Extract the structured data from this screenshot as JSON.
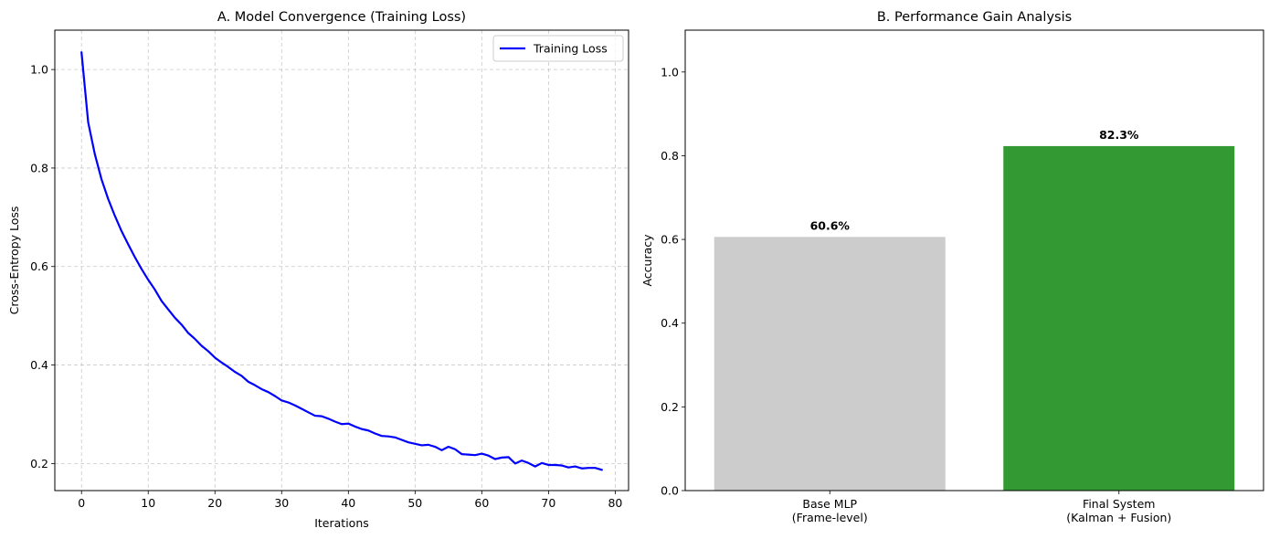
{
  "chart_data": [
    {
      "type": "line",
      "title": "A. Model Convergence (Training Loss)",
      "xlabel": "Iterations",
      "ylabel": "Cross-Entropy Loss",
      "xlim": [
        -4,
        82
      ],
      "ylim": [
        0.145,
        1.08
      ],
      "xticks": [
        0,
        10,
        20,
        30,
        40,
        50,
        60,
        70,
        80
      ],
      "xtick_labels": [
        "0",
        "10",
        "20",
        "30",
        "40",
        "50",
        "60",
        "70",
        "80"
      ],
      "yticks": [
        0.2,
        0.4,
        0.6,
        0.8,
        1.0
      ],
      "ytick_labels": [
        "0.2",
        "0.4",
        "0.6",
        "0.8",
        "1.0"
      ],
      "grid": true,
      "legend_position": "top-right",
      "series": [
        {
          "name": "Training Loss",
          "color": "#0000ff",
          "x": [
            0,
            1,
            2,
            3,
            4,
            5,
            6,
            7,
            8,
            9,
            10,
            11,
            12,
            13,
            14,
            15,
            16,
            17,
            18,
            19,
            20,
            21,
            22,
            23,
            24,
            25,
            26,
            27,
            28,
            29,
            30,
            31,
            32,
            33,
            34,
            35,
            36,
            37,
            38,
            39,
            40,
            41,
            42,
            43,
            44,
            45,
            46,
            47,
            48,
            49,
            50,
            51,
            52,
            53,
            54,
            55,
            56,
            57,
            58,
            59,
            60,
            61,
            62,
            63,
            64,
            65,
            66,
            67,
            68,
            69,
            70,
            71,
            72,
            73,
            74,
            75,
            76,
            77,
            78
          ],
          "values": [
            1.035,
            0.893,
            0.828,
            0.777,
            0.737,
            0.703,
            0.672,
            0.645,
            0.619,
            0.595,
            0.573,
            0.553,
            0.53,
            0.513,
            0.496,
            0.482,
            0.465,
            0.453,
            0.439,
            0.428,
            0.415,
            0.405,
            0.396,
            0.386,
            0.378,
            0.366,
            0.359,
            0.351,
            0.345,
            0.337,
            0.328,
            0.324,
            0.318,
            0.311,
            0.304,
            0.297,
            0.296,
            0.291,
            0.285,
            0.28,
            0.281,
            0.275,
            0.27,
            0.267,
            0.261,
            0.256,
            0.255,
            0.253,
            0.248,
            0.243,
            0.24,
            0.237,
            0.238,
            0.234,
            0.227,
            0.234,
            0.229,
            0.219,
            0.218,
            0.217,
            0.22,
            0.216,
            0.209,
            0.212,
            0.213,
            0.2,
            0.206,
            0.201,
            0.194,
            0.201,
            0.197,
            0.197,
            0.196,
            0.192,
            0.194,
            0.19,
            0.191,
            0.191,
            0.187
          ]
        }
      ]
    },
    {
      "type": "bar",
      "title": "B. Performance Gain Analysis",
      "xlabel": "",
      "ylabel": "Accuracy",
      "ylim": [
        0,
        1.1
      ],
      "yticks": [
        0.0,
        0.2,
        0.4,
        0.6,
        0.8,
        1.0
      ],
      "ytick_labels": [
        "0.0",
        "0.2",
        "0.4",
        "0.6",
        "0.8",
        "1.0"
      ],
      "grid": false,
      "categories": [
        [
          "Base MLP",
          "(Frame-level)"
        ],
        [
          "Final System",
          "(Kalman + Fusion)"
        ]
      ],
      "values": [
        0.606,
        0.823
      ],
      "data_labels": [
        "60.6%",
        "82.3%"
      ],
      "colors": [
        "#cccccc",
        "#339933"
      ]
    }
  ]
}
